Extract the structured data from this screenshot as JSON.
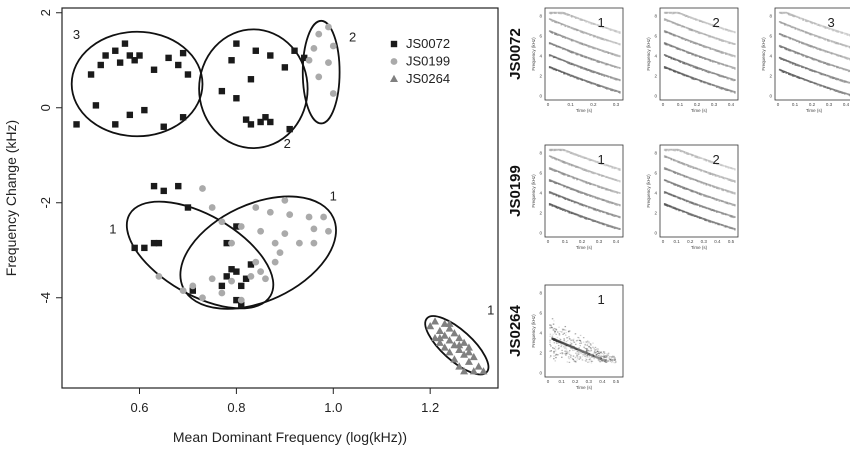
{
  "chart_data": {
    "type": "scatter",
    "title": "",
    "xlabel": "Mean Dominant Frequency (log(kHz))",
    "ylabel": "Frequency Change (kHz)",
    "xlim": [
      0.44,
      1.34
    ],
    "ylim": [
      -5.9,
      2.1
    ],
    "x_ticks": [
      "0.6",
      "0.8",
      "1.0",
      "1.2"
    ],
    "y_ticks": [
      "2",
      "0",
      "-2",
      "-4"
    ],
    "grid": false,
    "legend_position": "top-right",
    "series": [
      {
        "name": "JS0072",
        "marker": "square",
        "color": "#1a1a1a",
        "points": [
          [
            0.5,
            0.7
          ],
          [
            0.52,
            0.9
          ],
          [
            0.53,
            1.1
          ],
          [
            0.55,
            1.2
          ],
          [
            0.56,
            0.95
          ],
          [
            0.57,
            1.35
          ],
          [
            0.58,
            1.1
          ],
          [
            0.59,
            1.0
          ],
          [
            0.6,
            1.1
          ],
          [
            0.63,
            0.8
          ],
          [
            0.66,
            1.05
          ],
          [
            0.68,
            0.9
          ],
          [
            0.69,
            1.15
          ],
          [
            0.7,
            0.7
          ],
          [
            0.47,
            -0.35
          ],
          [
            0.51,
            0.05
          ],
          [
            0.55,
            -0.35
          ],
          [
            0.58,
            -0.15
          ],
          [
            0.61,
            -0.05
          ],
          [
            0.65,
            -0.4
          ],
          [
            0.69,
            -0.2
          ],
          [
            0.79,
            1.0
          ],
          [
            0.8,
            1.35
          ],
          [
            0.83,
            0.6
          ],
          [
            0.84,
            1.2
          ],
          [
            0.87,
            1.1
          ],
          [
            0.9,
            0.85
          ],
          [
            0.92,
            1.2
          ],
          [
            0.94,
            1.05
          ],
          [
            0.77,
            0.35
          ],
          [
            0.8,
            0.2
          ],
          [
            0.82,
            -0.25
          ],
          [
            0.83,
            -0.35
          ],
          [
            0.85,
            -0.3
          ],
          [
            0.86,
            -0.2
          ],
          [
            0.87,
            -0.3
          ],
          [
            0.91,
            -0.45
          ],
          [
            0.63,
            -1.65
          ],
          [
            0.68,
            -1.65
          ],
          [
            0.65,
            -1.75
          ],
          [
            0.7,
            -2.1
          ],
          [
            0.63,
            -2.85
          ],
          [
            0.64,
            -2.85
          ],
          [
            0.59,
            -2.95
          ],
          [
            0.61,
            -2.95
          ],
          [
            0.78,
            -3.55
          ],
          [
            0.77,
            -3.75
          ],
          [
            0.79,
            -3.4
          ],
          [
            0.8,
            -3.45
          ],
          [
            0.81,
            -3.75
          ],
          [
            0.82,
            -3.6
          ],
          [
            0.83,
            -3.3
          ],
          [
            0.8,
            -4.05
          ],
          [
            0.81,
            -4.15
          ],
          [
            0.71,
            -3.85
          ],
          [
            0.78,
            -2.85
          ],
          [
            0.8,
            -2.5
          ]
        ]
      },
      {
        "name": "JS0199",
        "marker": "circle",
        "color": "#aaaaaa",
        "points": [
          [
            0.95,
            1.0
          ],
          [
            0.96,
            1.25
          ],
          [
            0.97,
            0.65
          ],
          [
            0.97,
            1.55
          ],
          [
            0.99,
            0.95
          ],
          [
            1.0,
            1.3
          ],
          [
            0.99,
            1.7
          ],
          [
            1.0,
            0.3
          ],
          [
            0.73,
            -1.7
          ],
          [
            0.75,
            -2.1
          ],
          [
            0.77,
            -2.4
          ],
          [
            0.79,
            -2.85
          ],
          [
            0.81,
            -2.5
          ],
          [
            0.84,
            -2.1
          ],
          [
            0.85,
            -2.6
          ],
          [
            0.87,
            -2.2
          ],
          [
            0.88,
            -2.85
          ],
          [
            0.9,
            -2.65
          ],
          [
            0.9,
            -1.95
          ],
          [
            0.91,
            -2.25
          ],
          [
            0.93,
            -2.85
          ],
          [
            0.95,
            -2.3
          ],
          [
            0.96,
            -2.55
          ],
          [
            0.98,
            -2.3
          ],
          [
            0.99,
            -2.6
          ],
          [
            0.96,
            -2.85
          ],
          [
            0.64,
            -3.55
          ],
          [
            0.69,
            -3.85
          ],
          [
            0.71,
            -3.75
          ],
          [
            0.73,
            -4.0
          ],
          [
            0.75,
            -3.6
          ],
          [
            0.77,
            -3.9
          ],
          [
            0.79,
            -3.65
          ],
          [
            0.81,
            -4.05
          ],
          [
            0.83,
            -3.55
          ],
          [
            0.85,
            -3.45
          ],
          [
            0.86,
            -3.6
          ],
          [
            0.88,
            -3.25
          ],
          [
            0.89,
            -3.05
          ],
          [
            0.84,
            -3.25
          ]
        ]
      },
      {
        "name": "JS0264",
        "marker": "triangle",
        "color": "#808080",
        "points": [
          [
            1.2,
            -4.6
          ],
          [
            1.21,
            -4.85
          ],
          [
            1.21,
            -4.5
          ],
          [
            1.22,
            -4.7
          ],
          [
            1.22,
            -4.95
          ],
          [
            1.23,
            -4.55
          ],
          [
            1.23,
            -4.8
          ],
          [
            1.23,
            -5.05
          ],
          [
            1.24,
            -4.65
          ],
          [
            1.24,
            -4.9
          ],
          [
            1.24,
            -5.15
          ],
          [
            1.25,
            -4.75
          ],
          [
            1.25,
            -5.0
          ],
          [
            1.25,
            -5.3
          ],
          [
            1.26,
            -4.85
          ],
          [
            1.26,
            -5.1
          ],
          [
            1.26,
            -5.45
          ],
          [
            1.27,
            -4.95
          ],
          [
            1.27,
            -5.2
          ],
          [
            1.27,
            -5.55
          ],
          [
            1.28,
            -5.05
          ],
          [
            1.28,
            -5.35
          ],
          [
            1.29,
            -5.25
          ],
          [
            1.29,
            -5.55
          ],
          [
            1.3,
            -5.45
          ],
          [
            1.31,
            -5.55
          ],
          [
            1.22,
            -4.85
          ],
          [
            1.24,
            -4.55
          ],
          [
            1.26,
            -5.0
          ],
          [
            1.28,
            -5.15
          ]
        ]
      }
    ],
    "ellipses": [
      {
        "label": "3",
        "cx": 0.595,
        "cy": 0.5,
        "rx": 0.135,
        "ry": 1.1,
        "angle": 0,
        "label_x": 0.47,
        "label_y": 1.45
      },
      {
        "label": "2",
        "cx": 0.835,
        "cy": 0.4,
        "rx": 0.112,
        "ry": 1.25,
        "angle": 0,
        "label_x": 0.905,
        "label_y": -0.85
      },
      {
        "label": "2",
        "cx": 0.975,
        "cy": 0.75,
        "rx": 0.038,
        "ry": 1.08,
        "angle": 0,
        "label_x": 1.04,
        "label_y": 1.4
      },
      {
        "label": "1",
        "cx": 0.725,
        "cy": -3.1,
        "rx": 0.168,
        "ry": 0.84,
        "angle": 30,
        "label_x": 0.545,
        "label_y": -2.65
      },
      {
        "label": "1",
        "cx": 0.845,
        "cy": -3.05,
        "rx": 0.171,
        "ry": 1.02,
        "angle": -25,
        "label_x": 1.0,
        "label_y": -1.95
      },
      {
        "label": "1",
        "cx": 1.255,
        "cy": -5.0,
        "rx": 0.083,
        "ry": 0.32,
        "angle": 42,
        "label_x": 1.325,
        "label_y": -4.35
      }
    ]
  },
  "spectrograms": {
    "rows": [
      {
        "label": "JS0072",
        "panels": [
          {
            "number": "1",
            "y_ticks": [
              "0",
              "2",
              "4",
              "6",
              "8"
            ],
            "x_ticks": [
              "0",
              "0.1",
              "0.2",
              "0.3"
            ],
            "x_label": "Time (s)",
            "y_label": "Frequency (kHz)"
          },
          {
            "number": "2",
            "y_ticks": [
              "0",
              "2",
              "4",
              "6",
              "8"
            ],
            "x_ticks": [
              "0",
              "0.1",
              "0.2",
              "0.3",
              "0.4"
            ],
            "x_label": "Time (s)",
            "y_label": "Frequency (kHz)"
          },
          {
            "number": "3",
            "y_ticks": [
              "0",
              "2",
              "4",
              "6",
              "8"
            ],
            "x_ticks": [
              "0",
              "0.1",
              "0.2",
              "0.3",
              "0.4"
            ],
            "x_label": "Time (s)",
            "y_label": "Frequency (kHz)"
          }
        ]
      },
      {
        "label": "JS0199",
        "panels": [
          {
            "number": "1",
            "y_ticks": [
              "0",
              "2",
              "4",
              "6",
              "8"
            ],
            "x_ticks": [
              "0",
              "0.1",
              "0.2",
              "0.3",
              "0.4"
            ],
            "x_label": "Time (s)",
            "y_label": "Frequency (kHz)"
          },
          {
            "number": "2",
            "y_ticks": [
              "0",
              "2",
              "4",
              "6",
              "8"
            ],
            "x_ticks": [
              "0",
              "0.1",
              "0.2",
              "0.3",
              "0.4",
              "0.5"
            ],
            "x_label": "Time (s)",
            "y_label": "Frequency (kHz)"
          }
        ]
      },
      {
        "label": "JS0264",
        "panels": [
          {
            "number": "1",
            "y_ticks": [
              "0",
              "2",
              "4",
              "6",
              "8"
            ],
            "x_ticks": [
              "0",
              "0.1",
              "0.2",
              "0.3",
              "0.4",
              "0.5"
            ],
            "x_label": "Time (s)",
            "y_label": "Frequency (kHz)"
          }
        ]
      }
    ]
  }
}
